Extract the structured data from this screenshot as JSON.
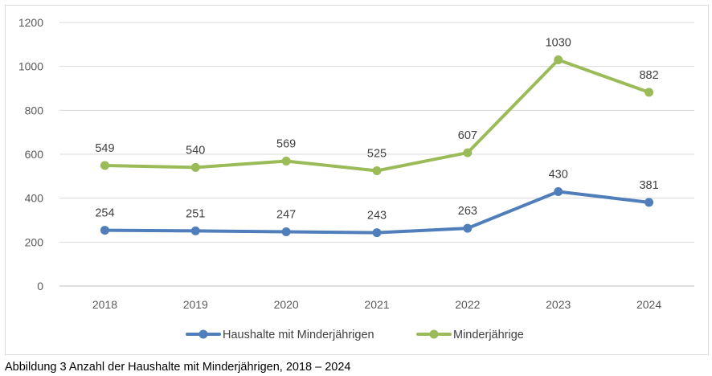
{
  "caption": "Abbildung 3 Anzahl der Haushalte mit Minderjährigen, 2018 – 2024",
  "chart_data": {
    "type": "line",
    "categories": [
      "2018",
      "2019",
      "2020",
      "2021",
      "2022",
      "2023",
      "2024"
    ],
    "series": [
      {
        "name": "Haushalte mit Minderjährigen",
        "values": [
          254,
          251,
          247,
          243,
          263,
          430,
          381
        ],
        "color": "#4f7ebb"
      },
      {
        "name": "Minderjährige",
        "values": [
          549,
          540,
          569,
          525,
          607,
          1030,
          882
        ],
        "color": "#9bbb59"
      }
    ],
    "ylim": [
      0,
      1200
    ],
    "yticks": [
      "0",
      "200",
      "400",
      "600",
      "800",
      "1000",
      "1200"
    ],
    "grid": true,
    "legend": "bottom",
    "gridColor": "#d9d9d9",
    "axisColor": "#bfbfbf"
  }
}
